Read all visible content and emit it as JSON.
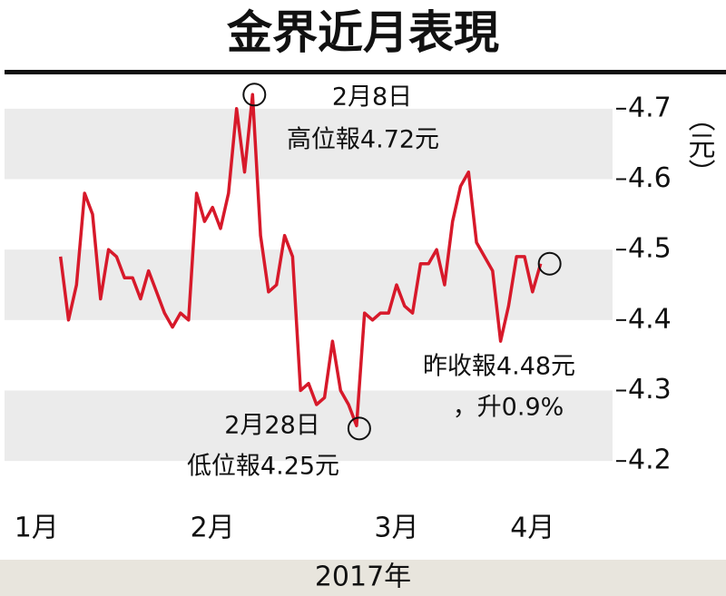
{
  "chart_data": {
    "type": "line",
    "title": "金界近月表現",
    "values": [
      4.49,
      4.4,
      4.45,
      4.58,
      4.55,
      4.43,
      4.5,
      4.49,
      4.46,
      4.46,
      4.43,
      4.47,
      4.44,
      4.41,
      4.39,
      4.41,
      4.4,
      4.58,
      4.54,
      4.56,
      4.53,
      4.58,
      4.7,
      4.61,
      4.72,
      4.52,
      4.44,
      4.45,
      4.52,
      4.49,
      4.3,
      4.31,
      4.28,
      4.29,
      4.37,
      4.3,
      4.28,
      4.25,
      4.41,
      4.4,
      4.41,
      4.41,
      4.45,
      4.42,
      4.41,
      4.48,
      4.48,
      4.5,
      4.45,
      4.54,
      4.59,
      4.61,
      4.51,
      4.49,
      4.47,
      4.37,
      4.42,
      4.49,
      4.49,
      4.44,
      4.48
    ],
    "color": "#d7192a",
    "xlim": [
      -7,
      69
    ],
    "xticks": [
      {
        "value": -3,
        "label": "1月"
      },
      {
        "value": 19,
        "label": "2月"
      },
      {
        "value": 42,
        "label": "3月"
      },
      {
        "value": 59,
        "label": "4月"
      }
    ],
    "xlabel": "2017年",
    "ylabel": "（元）",
    "ylim": [
      4.15,
      4.75
    ],
    "yticks": [
      4.2,
      4.3,
      4.4,
      4.5,
      4.6,
      4.7
    ],
    "band_color": "#ebebeb",
    "annotations": [
      "2月8日",
      "高位報4.72元",
      "2月28日",
      "低位報4.25元",
      "昨收報4.48元",
      "，升0.9%"
    ]
  }
}
